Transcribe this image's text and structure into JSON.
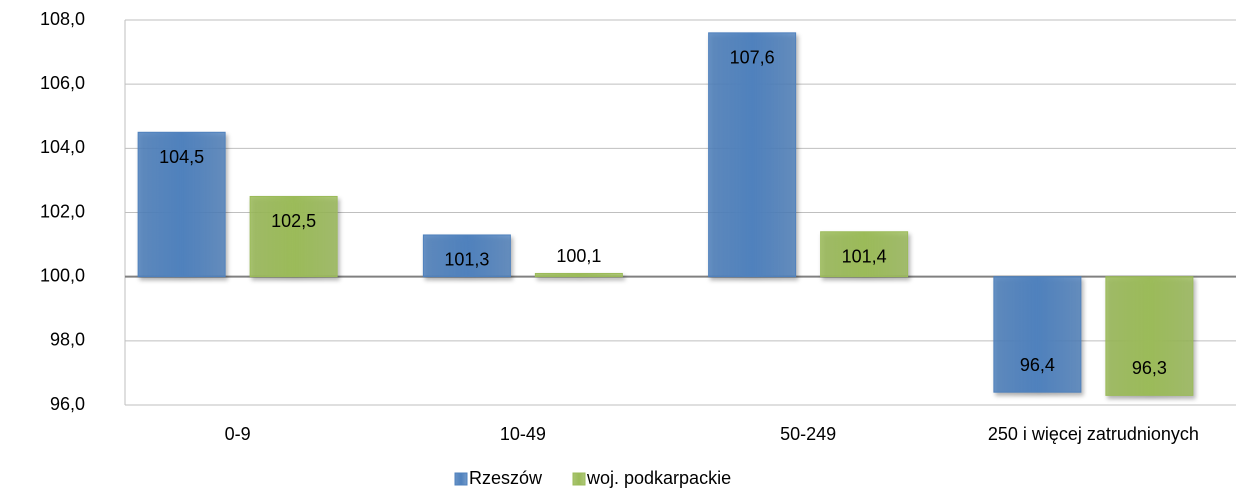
{
  "chart_data": {
    "type": "bar",
    "categories": [
      "0-9",
      "10-49",
      "50-249",
      "250 i więcej zatrudnionych"
    ],
    "series": [
      {
        "name": "Rzeszów",
        "color": "#4f81bd",
        "values": [
          104.5,
          101.3,
          107.6,
          96.4
        ],
        "value_labels": [
          "104,5",
          "101,3",
          "107,6",
          "96,4"
        ]
      },
      {
        "name": "woj. podkarpackie",
        "color": "#9bbb59",
        "values": [
          102.5,
          100.1,
          101.4,
          96.3
        ],
        "value_labels": [
          "102,5",
          "100,1",
          "101,4",
          "96,3"
        ]
      }
    ],
    "ylim": [
      96,
      108
    ],
    "yticks": [
      {
        "value": 96,
        "label": "96,0"
      },
      {
        "value": 98,
        "label": "98,0"
      },
      {
        "value": 100,
        "label": "100,0"
      },
      {
        "value": 102,
        "label": "102,0"
      },
      {
        "value": 104,
        "label": "104,0"
      },
      {
        "value": 106,
        "label": "106,0"
      },
      {
        "value": 108,
        "label": "108,0"
      }
    ],
    "bar_base": 100,
    "grid": true,
    "legend": "bottom"
  }
}
